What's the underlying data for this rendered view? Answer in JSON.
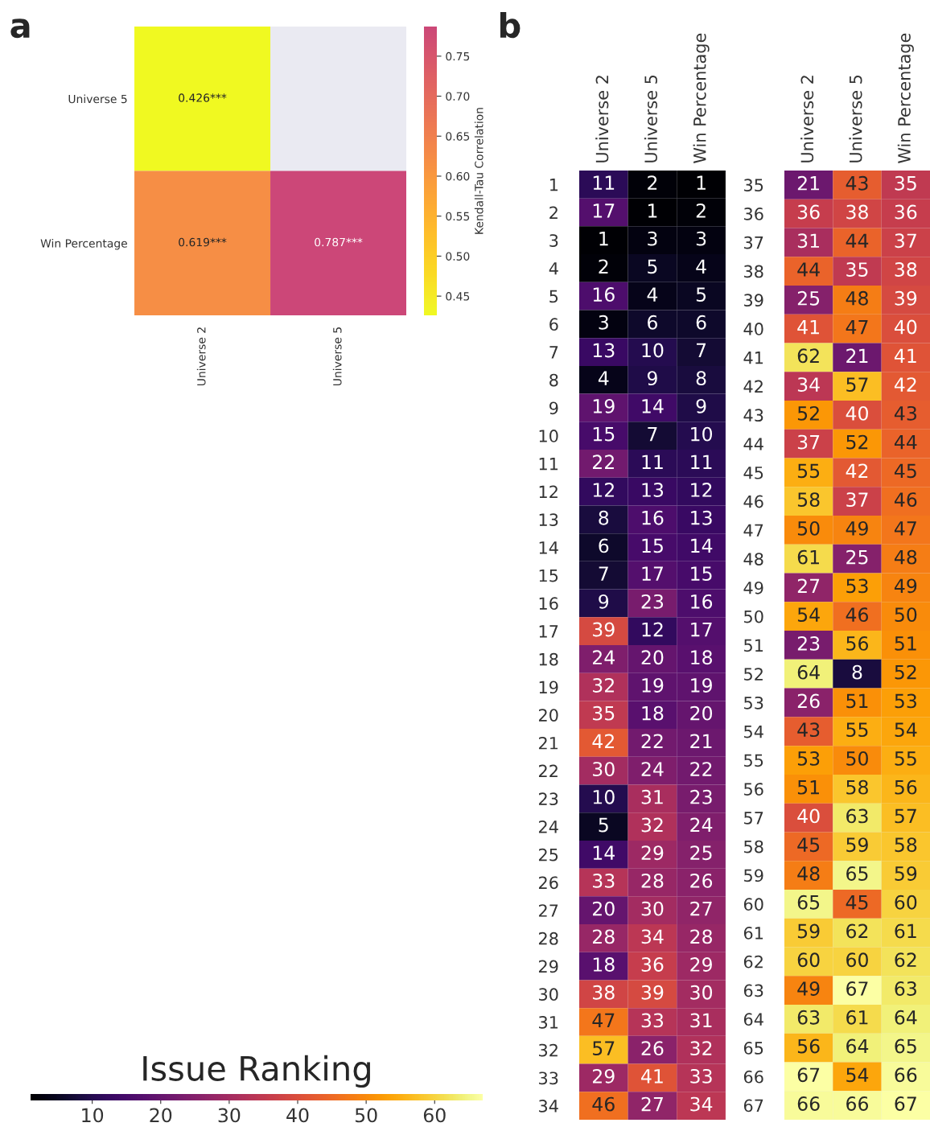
{
  "chart_data": [
    {
      "type": "heatmap",
      "annotations": [
        "a"
      ],
      "categories": [
        "Universe 2",
        "Universe 5"
      ],
      "y_categories": [
        "Universe 5",
        "Win Percentage"
      ],
      "cells": [
        [
          0.426,
          null
        ],
        [
          0.619,
          0.787
        ]
      ],
      "cell_labels": [
        [
          "0.426***",
          null
        ],
        [
          "0.619***",
          "0.787***"
        ]
      ],
      "clabel": "Kendall-Tau Correlation",
      "clim": [
        0.426,
        0.787
      ],
      "cticks": [
        {
          "value": 0.45,
          "label": "0.45"
        },
        {
          "value": 0.5,
          "label": "0.50"
        },
        {
          "value": 0.55,
          "label": "0.55"
        },
        {
          "value": 0.6,
          "label": "0.60"
        },
        {
          "value": 0.65,
          "label": "0.65"
        },
        {
          "value": 0.7,
          "label": "0.70"
        },
        {
          "value": 0.75,
          "label": "0.75"
        }
      ]
    },
    {
      "type": "heatmap",
      "annotations": [
        "b"
      ],
      "categories": [
        "Universe 2",
        "Universe 5",
        "Win Percentage"
      ],
      "y_categories": [
        "1",
        "2",
        "3",
        "4",
        "5",
        "6",
        "7",
        "8",
        "9",
        "10",
        "11",
        "12",
        "13",
        "14",
        "15",
        "16",
        "17",
        "18",
        "19",
        "20",
        "21",
        "22",
        "23",
        "24",
        "25",
        "26",
        "27",
        "28",
        "29",
        "30",
        "31",
        "32",
        "33",
        "34"
      ],
      "cells": [
        [
          11,
          2,
          1
        ],
        [
          17,
          1,
          2
        ],
        [
          1,
          3,
          3
        ],
        [
          2,
          5,
          4
        ],
        [
          16,
          4,
          5
        ],
        [
          3,
          6,
          6
        ],
        [
          13,
          10,
          7
        ],
        [
          4,
          9,
          8
        ],
        [
          19,
          14,
          9
        ],
        [
          15,
          7,
          10
        ],
        [
          22,
          11,
          11
        ],
        [
          12,
          13,
          12
        ],
        [
          8,
          16,
          13
        ],
        [
          6,
          15,
          14
        ],
        [
          7,
          17,
          15
        ],
        [
          9,
          23,
          16
        ],
        [
          39,
          12,
          17
        ],
        [
          24,
          20,
          18
        ],
        [
          32,
          19,
          19
        ],
        [
          35,
          18,
          20
        ],
        [
          42,
          22,
          21
        ],
        [
          30,
          24,
          22
        ],
        [
          10,
          31,
          23
        ],
        [
          5,
          32,
          24
        ],
        [
          14,
          29,
          25
        ],
        [
          33,
          28,
          26
        ],
        [
          20,
          30,
          27
        ],
        [
          28,
          34,
          28
        ],
        [
          18,
          36,
          29
        ],
        [
          38,
          39,
          30
        ],
        [
          47,
          33,
          31
        ],
        [
          57,
          26,
          32
        ],
        [
          29,
          41,
          33
        ],
        [
          46,
          27,
          34
        ]
      ],
      "clabel": "Issue Ranking",
      "clim": [
        1,
        67
      ],
      "data_labels": true,
      "cticks": [
        10,
        20,
        30,
        40,
        50,
        60
      ]
    },
    {
      "type": "heatmap",
      "categories": [
        "Universe 2",
        "Universe 5",
        "Win Percentage"
      ],
      "y_categories": [
        "35",
        "36",
        "37",
        "38",
        "39",
        "40",
        "41",
        "42",
        "43",
        "44",
        "45",
        "46",
        "47",
        "48",
        "49",
        "50",
        "51",
        "52",
        "53",
        "54",
        "55",
        "56",
        "57",
        "58",
        "59",
        "60",
        "61",
        "62",
        "63",
        "64",
        "65",
        "66",
        "67"
      ],
      "cells": [
        [
          21,
          43,
          35
        ],
        [
          36,
          38,
          36
        ],
        [
          31,
          44,
          37
        ],
        [
          44,
          35,
          38
        ],
        [
          25,
          48,
          39
        ],
        [
          41,
          47,
          40
        ],
        [
          62,
          21,
          41
        ],
        [
          34,
          57,
          42
        ],
        [
          52,
          40,
          43
        ],
        [
          37,
          52,
          44
        ],
        [
          55,
          42,
          45
        ],
        [
          58,
          37,
          46
        ],
        [
          50,
          49,
          47
        ],
        [
          61,
          25,
          48
        ],
        [
          27,
          53,
          49
        ],
        [
          54,
          46,
          50
        ],
        [
          23,
          56,
          51
        ],
        [
          64,
          8,
          52
        ],
        [
          26,
          51,
          53
        ],
        [
          43,
          55,
          54
        ],
        [
          53,
          50,
          55
        ],
        [
          51,
          58,
          56
        ],
        [
          40,
          63,
          57
        ],
        [
          45,
          59,
          58
        ],
        [
          48,
          65,
          59
        ],
        [
          65,
          45,
          60
        ],
        [
          59,
          62,
          61
        ],
        [
          60,
          60,
          62
        ],
        [
          49,
          67,
          63
        ],
        [
          63,
          61,
          64
        ],
        [
          56,
          64,
          65
        ],
        [
          67,
          54,
          66
        ],
        [
          66,
          66,
          67
        ]
      ],
      "data_labels": true
    }
  ]
}
